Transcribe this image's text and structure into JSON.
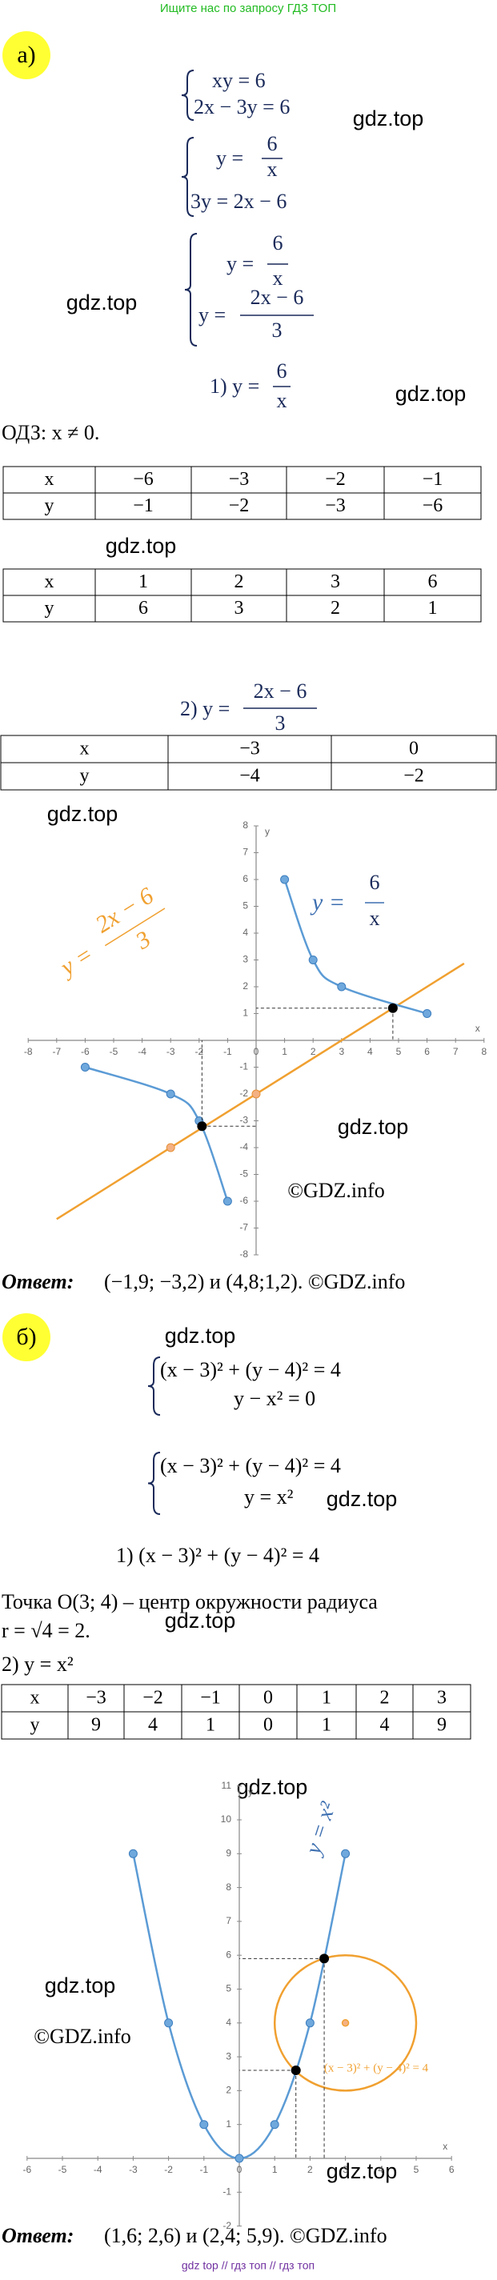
{
  "watermark_top": "Ищите нас по запросу ГДЗ ТОП",
  "gdz_marks": [
    "gdz.top",
    "gdz.top",
    "gdz.top",
    "gdz.top",
    "gdz.top",
    "gdz.top",
    "gdz.top",
    "gdz.top",
    "gdz.top",
    "gdz.top",
    "gdz.top",
    "gdz.top"
  ],
  "part_a": {
    "label": "а)",
    "system1": [
      "xy = 6",
      "2x − 3y = 6"
    ],
    "system2": {
      "eq1_lhs": "y =",
      "eq1_num": "6",
      "eq1_den": "x",
      "eq2": "3y = 2x − 6"
    },
    "system3": {
      "eq1_lhs": "y =",
      "eq1_num": "6",
      "eq1_den": "x",
      "eq2_lhs": "y =",
      "eq2_num": "2x − 6",
      "eq2_den": "3"
    },
    "step1": {
      "prefix": "1) y =",
      "num": "6",
      "den": "x"
    },
    "domain": "ОДЗ: x ≠ 0.",
    "table1": {
      "rows": [
        [
          "x",
          "−6",
          "−3",
          "−2",
          "−1"
        ],
        [
          "y",
          "−1",
          "−2",
          "−3",
          "−6"
        ]
      ]
    },
    "table2": {
      "rows": [
        [
          "x",
          "1",
          "2",
          "3",
          "6"
        ],
        [
          "y",
          "6",
          "3",
          "2",
          "1"
        ]
      ]
    },
    "step2": {
      "prefix": "2) y =",
      "num": "2x − 6",
      "den": "3"
    },
    "table3": {
      "rows": [
        [
          "x",
          "−3",
          "0"
        ],
        [
          "y",
          "−4",
          "−2"
        ]
      ]
    },
    "graph": {
      "type": "line",
      "x_label": "x",
      "y_label": "y",
      "xlim": [
        -8,
        8
      ],
      "ylim": [
        -8,
        8
      ],
      "xticks": [
        -8,
        -7,
        -6,
        -5,
        -4,
        -3,
        -2,
        -1,
        0,
        1,
        2,
        3,
        4,
        5,
        6,
        7,
        8
      ],
      "yticks": [
        -8,
        -7,
        -6,
        -5,
        -4,
        -3,
        -2,
        -1,
        1,
        2,
        3,
        4,
        5,
        6,
        7,
        8
      ],
      "curves": [
        {
          "x": [
            1,
            2,
            3,
            6
          ],
          "y": [
            6,
            3,
            2,
            1
          ],
          "color": "#5b9bd5"
        },
        {
          "x": [
            -6,
            -3,
            -2,
            -1
          ],
          "y": [
            -1,
            -2,
            -3,
            -6
          ],
          "color": "#5b9bd5"
        }
      ],
      "lines": [
        {
          "x": [
            -3,
            0
          ],
          "y": [
            -4,
            -2
          ],
          "color": "#f0a030"
        }
      ],
      "intersections": {
        "x": [
          -1.9,
          4.8
        ],
        "y": [
          -3.2,
          1.2
        ]
      },
      "curve_label": {
        "lhs": "y =",
        "num": "6",
        "den": "x"
      },
      "line_label": {
        "lhs": "y =",
        "num": "2x − 6",
        "den": "3"
      },
      "watermark": "©GDZ.info"
    },
    "answer_label": "Ответ:",
    "answer": "(−1,9; −3,2) и (4,8;1,2). ©GDZ.info"
  },
  "part_b": {
    "label": "б)",
    "system1": [
      "(x − 3)² + (y − 4)² = 4",
      "y − x² = 0"
    ],
    "system2": [
      "(x − 3)² + (y − 4)² = 4",
      "y = x²"
    ],
    "step1": "1) (x − 3)² + (y − 4)² = 4",
    "center_text": "Точка O(3; 4) – центр окружности радиуса",
    "radius_text": "r = √4 = 2.",
    "step2": "2) y = x²",
    "table": {
      "rows": [
        [
          "x",
          "−3",
          "−2",
          "−1",
          "0",
          "1",
          "2",
          "3"
        ],
        [
          "y",
          "9",
          "4",
          "1",
          "0",
          "1",
          "4",
          "9"
        ]
      ]
    },
    "graph": {
      "type": "line",
      "x_label": "x",
      "y_label": "y",
      "xlim": [
        -6,
        6
      ],
      "ylim": [
        -2,
        11
      ],
      "xticks": [
        -6,
        -5,
        -4,
        -3,
        -2,
        -1,
        0,
        1,
        2,
        3,
        4,
        5,
        6
      ],
      "yticks": [
        -2,
        -1,
        1,
        2,
        3,
        4,
        5,
        6,
        7,
        8,
        9,
        10,
        11
      ],
      "curves": [
        {
          "x": [
            -3,
            -2,
            -1,
            0,
            1,
            2,
            3
          ],
          "y": [
            9,
            4,
            1,
            0,
            1,
            4,
            9
          ],
          "color": "#5b9bd5"
        }
      ],
      "circle": {
        "cx": 3,
        "cy": 4,
        "r": 2,
        "color": "#f0a030"
      },
      "intersections": {
        "x": [
          1.6,
          2.4
        ],
        "y": [
          2.6,
          5.9
        ]
      },
      "curve_label": "y = x²",
      "circle_label": "(x − 3)² + (y − 4)² = 4",
      "watermark": "©GDZ.info"
    },
    "answer_label": "Ответ:",
    "answer": "(1,6; 2,6) и (2,4; 5,9). ©GDZ.info"
  },
  "footer": "gdz top // гдз топ // гдз топ"
}
